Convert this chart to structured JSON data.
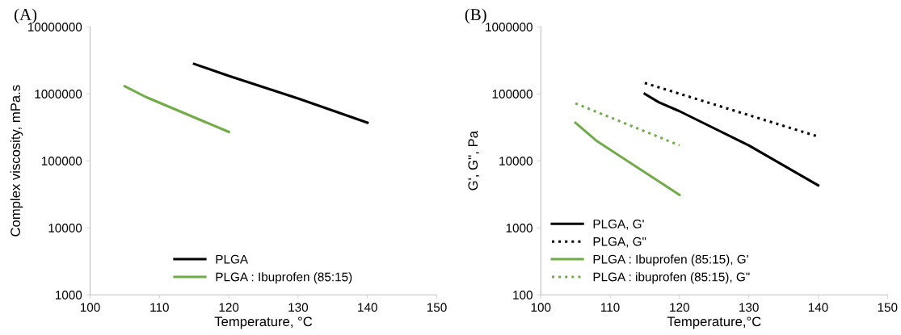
{
  "chart_data": [
    {
      "type": "line",
      "title": "(A)",
      "xlabel": "Temperature, °C",
      "ylabel": "Complex viscosity, mPa.s",
      "log": "y",
      "grid": false,
      "legend": "bottom",
      "line_style": "solid",
      "marker": "none",
      "xlim": [
        100,
        150
      ],
      "xticks": [
        100,
        110,
        120,
        130,
        140,
        150
      ],
      "ylim": [
        1000,
        10000000
      ],
      "yticks": [
        1000,
        10000,
        100000,
        1000000,
        10000000
      ],
      "series": [
        {
          "name": "PLGA",
          "color": "#000000",
          "x": [
            115,
            120,
            130,
            140
          ],
          "values": [
            2800000,
            1850000,
            850000,
            370000
          ]
        },
        {
          "name": "PLGA : Ibuprofen (85:15)",
          "color": "#70ad47",
          "x": [
            105,
            108,
            120
          ],
          "values": [
            1300000,
            900000,
            270000
          ]
        }
      ]
    },
    {
      "type": "line",
      "title": "(B)",
      "xlabel": "Temperature,°C",
      "ylabel": "G', G'', Pa",
      "log": "y",
      "grid": false,
      "legend": "bottom left",
      "marker": "none",
      "xlim": [
        100,
        150
      ],
      "xticks": [
        100,
        110,
        120,
        130,
        140,
        150
      ],
      "ylim": [
        100,
        1000000
      ],
      "yticks": [
        100,
        1000,
        10000,
        100000,
        1000000
      ],
      "series": [
        {
          "name": "PLGA, G'",
          "color": "#000000",
          "line_style": "solid",
          "x": [
            115,
            117,
            120,
            130,
            140
          ],
          "values": [
            100000,
            75000,
            55000,
            17000,
            4300
          ]
        },
        {
          "name": "PLGA, G\"",
          "color": "#000000",
          "line_style": "dotted",
          "x": [
            115,
            140
          ],
          "values": [
            145000,
            23000
          ]
        },
        {
          "name": "PLGA : Ibuprofen (85:15), G'",
          "color": "#70ad47",
          "line_style": "solid",
          "x": [
            105,
            108,
            120
          ],
          "values": [
            37000,
            20000,
            3100
          ]
        },
        {
          "name": "PLGA : ibuprofen (85:15), G\"",
          "color": "#70ad47",
          "line_style": "dotted",
          "x": [
            105,
            120
          ],
          "values": [
            72000,
            17000
          ]
        }
      ]
    }
  ]
}
